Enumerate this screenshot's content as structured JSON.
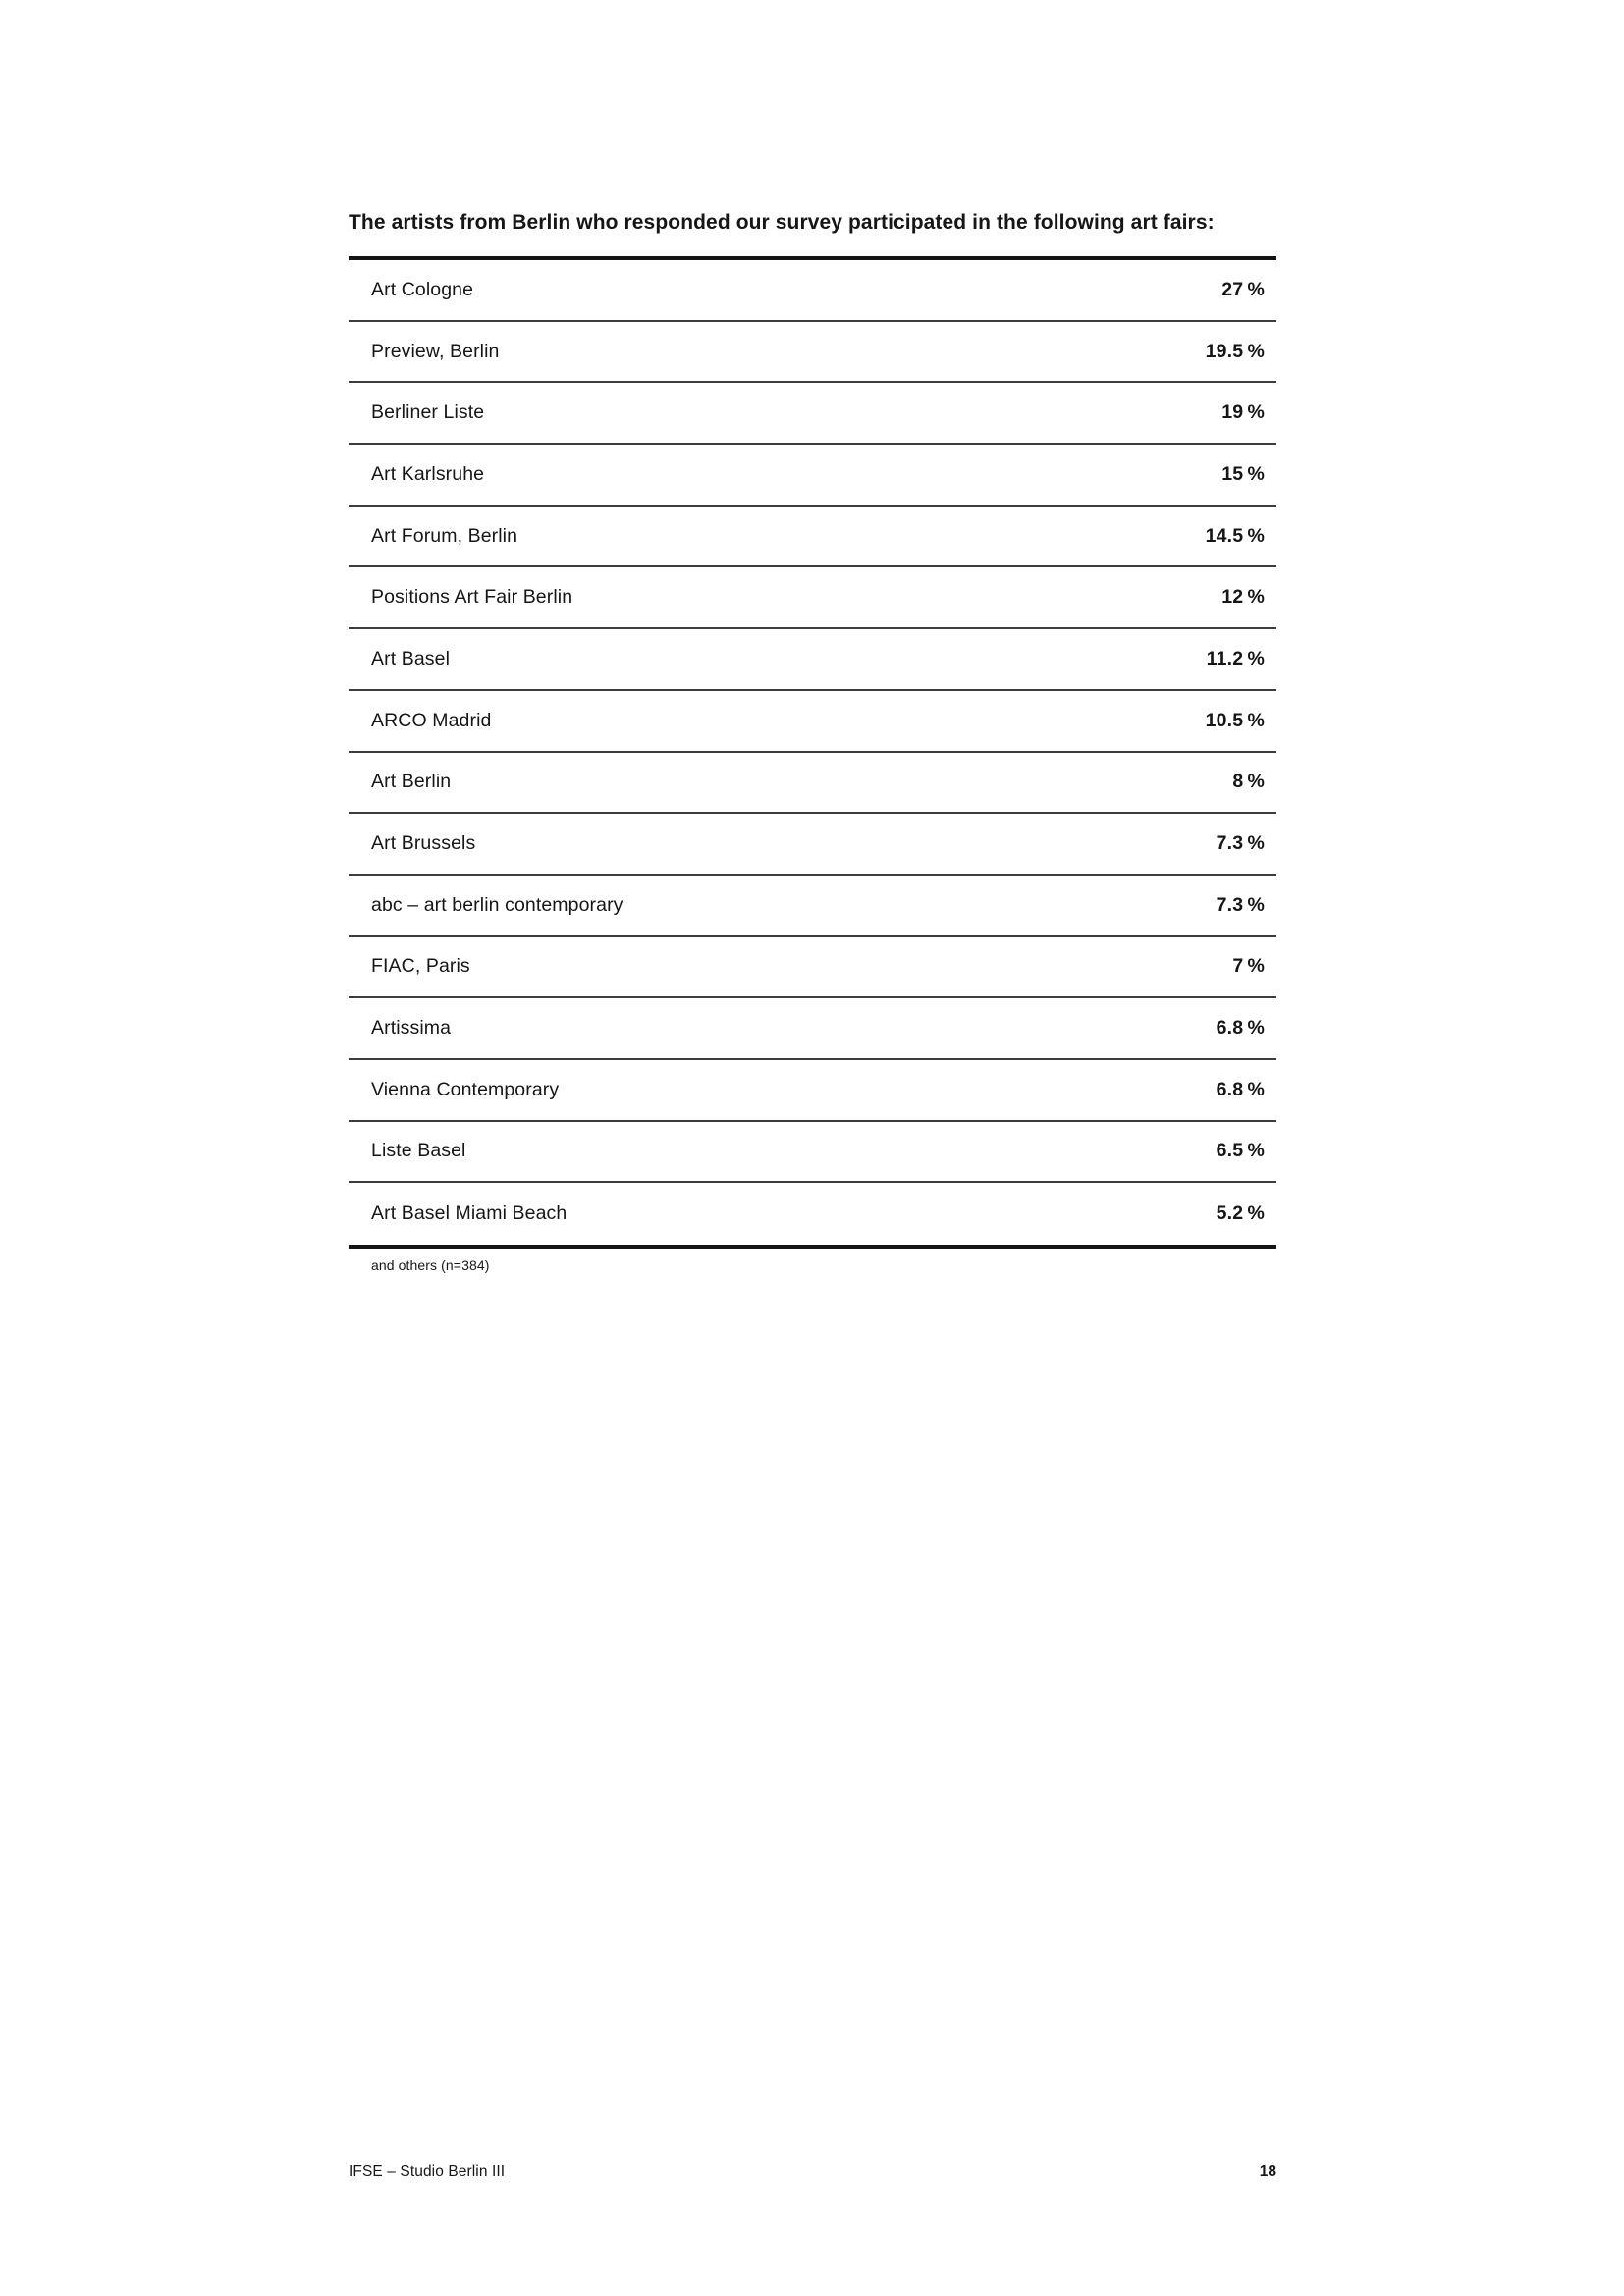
{
  "heading": {
    "text": "The artists from Berlin who responded our survey participated in the following art fairs:"
  },
  "table": {
    "note": "and others (n=384)",
    "rows": [
      {
        "label": "Art Cologne",
        "value": "27 %",
        "percent": 27
      },
      {
        "label": "Preview, Berlin",
        "value": "19.5 %",
        "percent": 19.5
      },
      {
        "label": "Berliner Liste",
        "value": "19 %",
        "percent": 19
      },
      {
        "label": "Art Karlsruhe",
        "value": "15 %",
        "percent": 15
      },
      {
        "label": "Art Forum, Berlin",
        "value": "14.5 %",
        "percent": 14.5
      },
      {
        "label": "Positions Art Fair Berlin",
        "value": "12 %",
        "percent": 12
      },
      {
        "label": "Art Basel",
        "value": "11.2 %",
        "percent": 11.2
      },
      {
        "label": "ARCO Madrid",
        "value": "10.5 %",
        "percent": 10.5
      },
      {
        "label": "Art Berlin",
        "value": "8 %",
        "percent": 8
      },
      {
        "label": "Art Brussels",
        "value": "7.3 %",
        "percent": 7.3
      },
      {
        "label": "abc – art berlin contemporary",
        "value": "7.3 %",
        "percent": 7.3
      },
      {
        "label": "FIAC, Paris",
        "value": "7 %",
        "percent": 7
      },
      {
        "label": "Artissima",
        "value": "6.8 %",
        "percent": 6.8
      },
      {
        "label": "Vienna Contemporary",
        "value": "6.8 %",
        "percent": 6.8
      },
      {
        "label": "Liste Basel",
        "value": "6.5 %",
        "percent": 6.5
      },
      {
        "label": "Art Basel Miami Beach",
        "value": "5.2 %",
        "percent": 5.2
      }
    ]
  },
  "footer": {
    "report_title": "IFSE – Studio Berlin III",
    "page_number": "18"
  },
  "colors": {
    "text": "#161616",
    "border_heavy": "#141414",
    "border_light": "#3c3c3c",
    "background": "#ffffff"
  },
  "chart_data": {
    "type": "table",
    "title": "The artists from Berlin who responded our survey participated in the following art fairs:",
    "categories": [
      "Art Cologne",
      "Preview, Berlin",
      "Berliner Liste",
      "Art Karlsruhe",
      "Art Forum, Berlin",
      "Positions Art Fair Berlin",
      "Art Basel",
      "ARCO Madrid",
      "Art Berlin",
      "Art Brussels",
      "abc – art berlin contemporary",
      "FIAC, Paris",
      "Artissima",
      "Vienna Contemporary",
      "Liste Basel",
      "Art Basel Miami Beach"
    ],
    "values": [
      27,
      19.5,
      19,
      15,
      14.5,
      12,
      11.2,
      10.5,
      8,
      7.3,
      7.3,
      7,
      6.8,
      6.8,
      6.5,
      5.2
    ],
    "unit": "%",
    "sample_note": "and others (n=384)"
  }
}
